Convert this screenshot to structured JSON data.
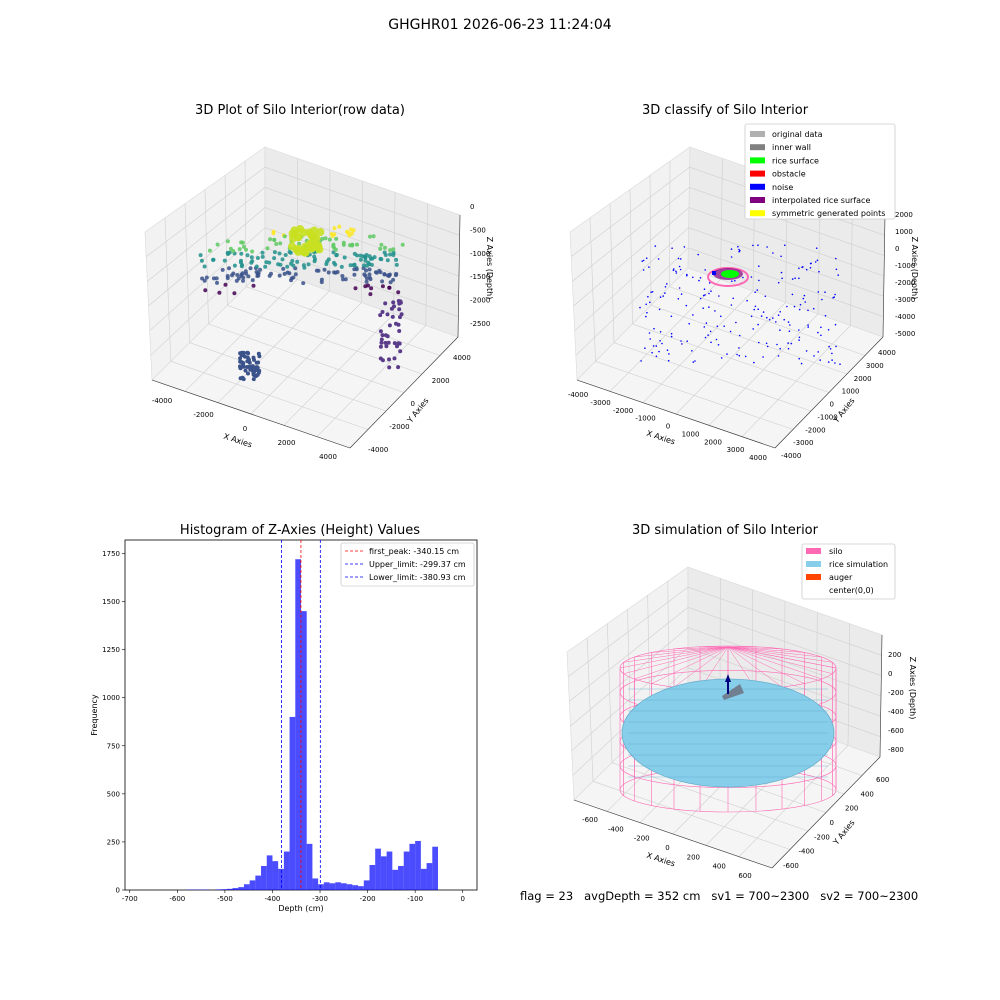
{
  "suptitle": "GHGHR01 2026-06-23 11:24:04",
  "panels": {
    "raw": {
      "title": "3D Plot of Silo Interior(row data)",
      "xlabel": "X Axies",
      "ylabel": "Y Axies",
      "zlabel": "Z Axies (Depth)",
      "xticks": [
        "-4000",
        "-2000",
        "0",
        "2000",
        "4000"
      ],
      "yticks": [
        "-4000",
        "-2000",
        "0",
        "2000",
        "4000"
      ],
      "zticks": [
        "0",
        "-500",
        "-1000",
        "-1500",
        "-2000",
        "-2500"
      ]
    },
    "classify": {
      "title": "3D classify of Silo Interior",
      "xlabel": "X Axies",
      "ylabel": "Y Axies",
      "zlabel": "Z Axies (Depth)",
      "xticks": [
        "-4000",
        "-3000",
        "-2000",
        "-1000",
        "0",
        "1000",
        "2000",
        "3000",
        "4000"
      ],
      "yticks": [
        "-4000",
        "-3000",
        "-2000",
        "-1000",
        "0",
        "1000",
        "2000",
        "3000",
        "4000"
      ],
      "zticks": [
        "2000",
        "1000",
        "0",
        "-1000",
        "-2000",
        "-3000",
        "-4000",
        "-5000"
      ],
      "legend": [
        {
          "label": "original data",
          "color": "#b0b0b0"
        },
        {
          "label": "inner wall",
          "color": "#808080"
        },
        {
          "label": "rice surface",
          "color": "#00ff00"
        },
        {
          "label": "obstacle",
          "color": "#ff0000"
        },
        {
          "label": "noise",
          "color": "#0000ff"
        },
        {
          "label": "interpolated rice surface",
          "color": "#800080"
        },
        {
          "label": "symmetric generated points",
          "color": "#ffff00"
        }
      ]
    },
    "simulation": {
      "title": "3D simulation of Silo Interior",
      "xlabel": "X Axies",
      "ylabel": "Y Axies",
      "zlabel": "Z Axies (Depth)",
      "xticks": [
        "-600",
        "-400",
        "-200",
        "0",
        "200",
        "400",
        "600"
      ],
      "yticks": [
        "-600",
        "-400",
        "-200",
        "0",
        "200",
        "400",
        "600"
      ],
      "zticks": [
        "200",
        "0",
        "-200",
        "-400",
        "-600",
        "-800"
      ],
      "legend": [
        {
          "label": "silo",
          "color": "#ff69b4"
        },
        {
          "label": "rice simulation",
          "color": "#87ceeb"
        },
        {
          "label": "auger",
          "color": "#ff4500"
        },
        {
          "label": "center(0,0)",
          "color": "#ffffff"
        }
      ]
    }
  },
  "footer": "flag = 23   avgDepth = 352 cm   sv1 = 700~2300   sv2 = 700~2300",
  "colors": {
    "hist": "#0000ff",
    "peak": "#ff0000",
    "limits": "#0000ff"
  },
  "chart_data": {
    "type": "bar",
    "title": "Histogram of Z-Axies (Height) Values",
    "xlabel": "Depth (cm)",
    "ylabel": "Frequency",
    "xlim": [
      -710,
      30
    ],
    "ylim": [
      0,
      1820
    ],
    "xticks": [
      -700,
      -600,
      -500,
      -400,
      -300,
      -200,
      -100,
      0
    ],
    "yticks": [
      0,
      250,
      500,
      750,
      1000,
      1250,
      1500,
      1750
    ],
    "bin_width": 12,
    "bins": [
      [
        -580,
        2
      ],
      [
        -568,
        2
      ],
      [
        -556,
        2
      ],
      [
        -544,
        2
      ],
      [
        -520,
        3
      ],
      [
        -508,
        4
      ],
      [
        -496,
        6
      ],
      [
        -484,
        10
      ],
      [
        -472,
        15
      ],
      [
        -460,
        30
      ],
      [
        -448,
        50
      ],
      [
        -436,
        75
      ],
      [
        -424,
        125
      ],
      [
        -412,
        180
      ],
      [
        -400,
        150
      ],
      [
        -388,
        110
      ],
      [
        -376,
        200
      ],
      [
        -364,
        900
      ],
      [
        -352,
        1720
      ],
      [
        -340,
        1450
      ],
      [
        -328,
        240
      ],
      [
        -316,
        60
      ],
      [
        -304,
        30
      ],
      [
        -292,
        40
      ],
      [
        -280,
        35
      ],
      [
        -268,
        40
      ],
      [
        -256,
        35
      ],
      [
        -244,
        30
      ],
      [
        -232,
        25
      ],
      [
        -220,
        20
      ],
      [
        -208,
        50
      ],
      [
        -196,
        130
      ],
      [
        -184,
        215
      ],
      [
        -172,
        175
      ],
      [
        -160,
        200
      ],
      [
        -148,
        105
      ],
      [
        -136,
        125
      ],
      [
        -124,
        200
      ],
      [
        -112,
        240
      ],
      [
        -100,
        255
      ],
      [
        -88,
        110
      ],
      [
        -76,
        140
      ],
      [
        -64,
        225
      ]
    ],
    "lines": [
      {
        "label": "first_peak: -340.15 cm",
        "x": -340.15,
        "color": "#ff0000"
      },
      {
        "label": "Upper_limit: -299.37 cm",
        "x": -299.37,
        "color": "#0000ff"
      },
      {
        "label": "Lower_limit: -380.93 cm",
        "x": -380.93,
        "color": "#0000ff"
      }
    ]
  }
}
